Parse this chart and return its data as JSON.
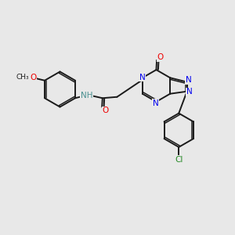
{
  "bg_color": "#e8e8e8",
  "bond_color": "#1a1a1a",
  "N_color": "#0000ee",
  "O_color": "#ee0000",
  "Cl_color": "#228822",
  "NH_color": "#4a9090",
  "fig_width": 3.0,
  "fig_height": 3.0,
  "dpi": 100,
  "xlim": [
    0,
    10
  ],
  "ylim": [
    0,
    10
  ]
}
